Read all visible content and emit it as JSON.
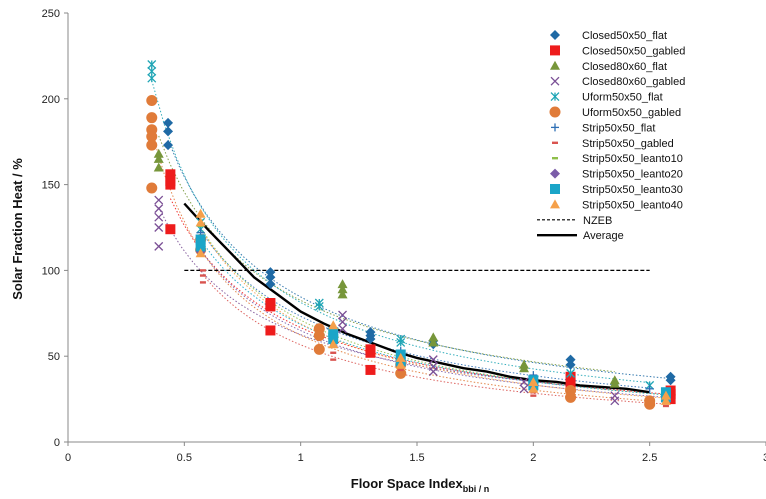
{
  "chart_data": {
    "type": "scatter",
    "title": "",
    "xlabel": "Floor Space Index",
    "xlabel_sub": "bbi / n",
    "ylabel": "Solar Fraction Heat / %",
    "xlim": [
      0,
      3
    ],
    "ylim": [
      0,
      250
    ],
    "x_ticks": [
      0,
      0.5,
      1,
      1.5,
      2,
      2.5,
      3
    ],
    "x_tick_labels": [
      "0",
      "0.5",
      "1",
      "1.5",
      "2",
      "2.5",
      "3"
    ],
    "y_ticks": [
      0,
      50,
      100,
      150,
      200,
      250
    ],
    "y_tick_labels": [
      "0",
      "50",
      "100",
      "150",
      "200",
      "250"
    ],
    "grid": false,
    "legend_position": "top-right",
    "series": [
      {
        "name": "Closed50x50_flat",
        "marker": "diamond",
        "color": "#1f6aa5",
        "points": [
          [
            0.43,
            186
          ],
          [
            0.43,
            181
          ],
          [
            0.43,
            173
          ],
          [
            0.87,
            99
          ],
          [
            0.87,
            96
          ],
          [
            0.87,
            92
          ],
          [
            1.3,
            64
          ],
          [
            1.3,
            62
          ],
          [
            1.3,
            60
          ],
          [
            1.57,
            59
          ],
          [
            1.57,
            57
          ],
          [
            2.16,
            48
          ],
          [
            2.16,
            45
          ],
          [
            2.59,
            38
          ],
          [
            2.59,
            36
          ]
        ]
      },
      {
        "name": "Closed50x50_gabled",
        "marker": "square",
        "color": "#ee1c1c",
        "points": [
          [
            0.44,
            156
          ],
          [
            0.44,
            152
          ],
          [
            0.44,
            150
          ],
          [
            0.44,
            124
          ],
          [
            0.87,
            81
          ],
          [
            0.87,
            79
          ],
          [
            0.87,
            65
          ],
          [
            1.3,
            54
          ],
          [
            1.3,
            52
          ],
          [
            1.3,
            42
          ],
          [
            2.16,
            38
          ],
          [
            2.16,
            34
          ],
          [
            2.59,
            30
          ],
          [
            2.59,
            28
          ],
          [
            2.59,
            25
          ]
        ]
      },
      {
        "name": "Closed80x60_flat",
        "marker": "triangle",
        "color": "#77963a",
        "points": [
          [
            0.39,
            168
          ],
          [
            0.39,
            165
          ],
          [
            0.39,
            160
          ],
          [
            1.18,
            92
          ],
          [
            1.18,
            89
          ],
          [
            1.18,
            86
          ],
          [
            1.57,
            61
          ],
          [
            1.57,
            58
          ],
          [
            1.96,
            45
          ],
          [
            1.96,
            43
          ],
          [
            2.35,
            36
          ],
          [
            2.35,
            34
          ]
        ]
      },
      {
        "name": "Closed80x60_gabled",
        "marker": "x",
        "color": "#7a4f95",
        "points": [
          [
            0.39,
            141
          ],
          [
            0.39,
            136
          ],
          [
            0.39,
            131
          ],
          [
            0.39,
            125
          ],
          [
            0.39,
            114
          ],
          [
            1.18,
            74
          ],
          [
            1.18,
            70
          ],
          [
            1.18,
            66
          ],
          [
            1.57,
            48
          ],
          [
            1.57,
            44
          ],
          [
            1.57,
            41
          ],
          [
            1.96,
            35
          ],
          [
            1.96,
            31
          ],
          [
            2.35,
            27
          ],
          [
            2.35,
            24
          ]
        ]
      },
      {
        "name": "Uform50x50_flat",
        "marker": "star",
        "color": "#1fa5b5",
        "points": [
          [
            0.36,
            220
          ],
          [
            0.36,
            216
          ],
          [
            0.36,
            212
          ],
          [
            0.57,
            128
          ],
          [
            0.57,
            124
          ],
          [
            1.08,
            81
          ],
          [
            1.08,
            79
          ],
          [
            1.43,
            60
          ],
          [
            1.43,
            58
          ],
          [
            2.16,
            40
          ],
          [
            2.5,
            33
          ]
        ]
      },
      {
        "name": "Uform50x50_gabled",
        "marker": "circle",
        "color": "#e07b39",
        "points": [
          [
            0.36,
            199
          ],
          [
            0.36,
            189
          ],
          [
            0.36,
            182
          ],
          [
            0.36,
            178
          ],
          [
            0.36,
            173
          ],
          [
            0.36,
            148
          ],
          [
            0.57,
            118
          ],
          [
            0.57,
            112
          ],
          [
            1.08,
            66
          ],
          [
            1.08,
            62
          ],
          [
            1.08,
            54
          ],
          [
            1.43,
            45
          ],
          [
            1.43,
            40
          ],
          [
            2.16,
            30
          ],
          [
            2.16,
            26
          ],
          [
            2.5,
            24
          ],
          [
            2.5,
            22
          ]
        ]
      },
      {
        "name": "Strip50x50_flat",
        "marker": "plus",
        "color": "#2e6fb5",
        "points": [
          [
            0.57,
            122
          ],
          [
            1.13,
            66
          ],
          [
            1.43,
            53
          ],
          [
            2.0,
            39
          ],
          [
            2.5,
            31
          ]
        ]
      },
      {
        "name": "Strip50x50_gabled",
        "marker": "dash",
        "color": "#d9534f",
        "points": [
          [
            0.58,
            100
          ],
          [
            0.58,
            97
          ],
          [
            0.58,
            93
          ],
          [
            1.14,
            52
          ],
          [
            1.14,
            48
          ],
          [
            1.43,
            42
          ],
          [
            2.0,
            29
          ],
          [
            2.0,
            27
          ],
          [
            2.57,
            23
          ],
          [
            2.57,
            21
          ]
        ]
      },
      {
        "name": "Strip50x50_leanto10",
        "marker": "dash",
        "color": "#8fbf4a",
        "points": [
          [
            0.57,
            126
          ],
          [
            1.14,
            62
          ],
          [
            1.43,
            49
          ],
          [
            2.0,
            35
          ],
          [
            2.57,
            28
          ]
        ]
      },
      {
        "name": "Strip50x50_leanto20",
        "marker": "diamond",
        "color": "#7a5ca8",
        "points": [
          [
            0.57,
            111
          ],
          [
            1.14,
            58
          ],
          [
            1.43,
            46
          ],
          [
            2.0,
            33
          ],
          [
            2.57,
            26
          ]
        ]
      },
      {
        "name": "Strip50x50_leanto30",
        "marker": "square",
        "color": "#1aa5c8",
        "points": [
          [
            0.57,
            118
          ],
          [
            0.57,
            114
          ],
          [
            1.14,
            64
          ],
          [
            1.14,
            60
          ],
          [
            1.43,
            51
          ],
          [
            1.43,
            47
          ],
          [
            2.0,
            36
          ],
          [
            2.0,
            33
          ],
          [
            2.57,
            29
          ],
          [
            2.57,
            26
          ]
        ]
      },
      {
        "name": "Strip50x50_leanto40",
        "marker": "triangle",
        "color": "#f5a04a",
        "points": [
          [
            0.57,
            133
          ],
          [
            0.57,
            128
          ],
          [
            0.57,
            110
          ],
          [
            1.14,
            68
          ],
          [
            1.14,
            57
          ],
          [
            1.43,
            49
          ],
          [
            1.43,
            45
          ],
          [
            2.0,
            35
          ],
          [
            2.0,
            31
          ],
          [
            2.57,
            27
          ],
          [
            2.57,
            24
          ]
        ]
      }
    ],
    "nzeb": {
      "name": "NZEB",
      "y": 100,
      "x_range": [
        0.5,
        2.5
      ]
    },
    "average": {
      "name": "Average",
      "points": [
        [
          0.5,
          139
        ],
        [
          0.6,
          124
        ],
        [
          0.7,
          110
        ],
        [
          0.8,
          96
        ],
        [
          0.9,
          86
        ],
        [
          1.0,
          76
        ],
        [
          1.1,
          69
        ],
        [
          1.2,
          63
        ],
        [
          1.3,
          58
        ],
        [
          1.4,
          53
        ],
        [
          1.5,
          49
        ],
        [
          1.6,
          46
        ],
        [
          1.7,
          43
        ],
        [
          1.8,
          41
        ],
        [
          1.9,
          38
        ],
        [
          2.0,
          36
        ],
        [
          2.1,
          35
        ],
        [
          2.2,
          33
        ],
        [
          2.3,
          32
        ],
        [
          2.4,
          31
        ],
        [
          2.5,
          29
        ]
      ]
    }
  }
}
